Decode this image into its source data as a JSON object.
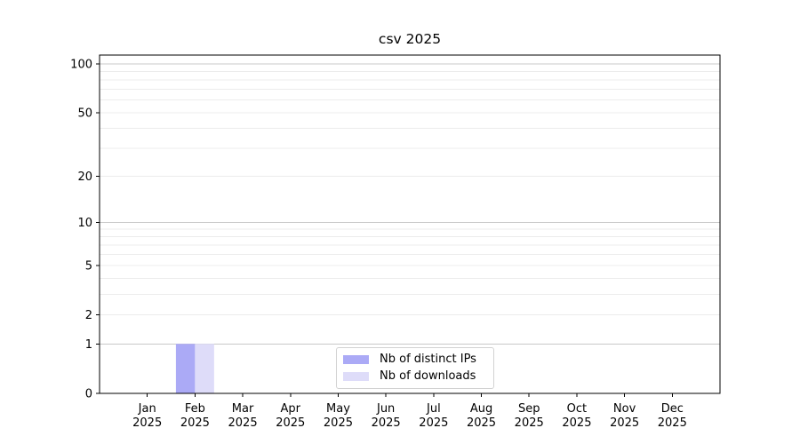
{
  "chart_data": {
    "type": "bar",
    "title": "csv 2025",
    "categories": [
      "Jan",
      "Feb",
      "Mar",
      "Apr",
      "May",
      "Jun",
      "Jul",
      "Aug",
      "Sep",
      "Oct",
      "Nov",
      "Dec"
    ],
    "x_tick_year": "2025",
    "series": [
      {
        "name": "Nb of distinct IPs",
        "color": "#abaaf6",
        "values": [
          0,
          1,
          0,
          0,
          0,
          0,
          0,
          0,
          0,
          0,
          0,
          0
        ]
      },
      {
        "name": "Nb of downloads",
        "color": "#dedcf9",
        "values": [
          0,
          1,
          0,
          0,
          0,
          0,
          0,
          0,
          0,
          0,
          0,
          0
        ]
      }
    ],
    "y_scale": "log1p",
    "ylim": [
      0,
      113.5
    ],
    "y_ticks": [
      0,
      1,
      2,
      5,
      10,
      20,
      50,
      100
    ],
    "y_major_gridlines": [
      1,
      10,
      100
    ],
    "y_minor_gridlines": [
      2,
      3,
      4,
      5,
      6,
      7,
      8,
      9,
      20,
      30,
      40,
      50,
      60,
      70,
      80,
      90
    ],
    "grid": true,
    "legend_position": "lower center",
    "colors": {
      "axis": "#000000",
      "text": "#000000",
      "major_grid": "#c9c9c9",
      "minor_grid": "#ececec",
      "background": "#ffffff"
    }
  }
}
